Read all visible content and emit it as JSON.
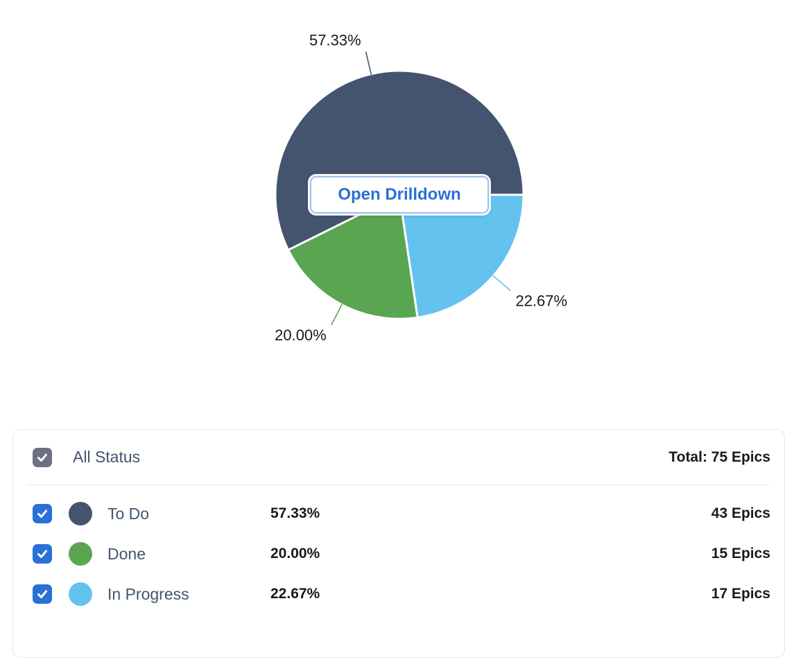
{
  "chart_data": {
    "type": "pie",
    "title": "",
    "total": 75,
    "slices": [
      {
        "label": "To Do",
        "value": 57.33,
        "pct_label": "57.33%",
        "count": 43,
        "count_label": "43 Epics",
        "color": "#44546F",
        "selected": true
      },
      {
        "label": "Done",
        "value": 20.0,
        "pct_label": "20.00%",
        "count": 15,
        "count_label": "15 Epics",
        "color": "#5AA551",
        "selected": true
      },
      {
        "label": "In Progress",
        "value": 22.67,
        "pct_label": "22.67%",
        "count": 17,
        "count_label": "17 Epics",
        "color": "#64C2EF",
        "selected": true
      }
    ],
    "layout": {
      "start_angle_deg": 0,
      "clockwise": true,
      "draw_order": [
        "In Progress",
        "Done",
        "To Do"
      ],
      "labels": "outside-with-leader-lines",
      "legend_position": "table-below"
    }
  },
  "drilldown_button": {
    "label": "Open Drilldown"
  },
  "legend_table": {
    "header": {
      "label": "All Status",
      "total_label": "Total: 75 Epics",
      "checked": true
    }
  },
  "colors": {
    "accent_blue": "#2A70D6",
    "checkbox_gray": "#6C7181",
    "slate_text": "#44546F",
    "dark_text": "#17191C",
    "card_border": "#E4E6EA",
    "divider": "#E9EAEE",
    "button_border": "#9FBFF2"
  }
}
